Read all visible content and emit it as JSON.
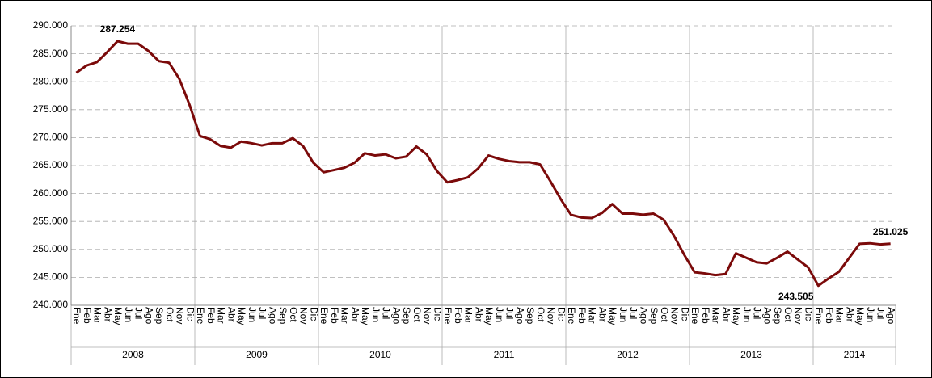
{
  "chart_data": {
    "type": "line",
    "categories": [
      "Ene",
      "Feb",
      "Mar",
      "Abr",
      "May",
      "Jun",
      "Jul",
      "Ago",
      "Sep",
      "Oct",
      "Nov",
      "Dic",
      "Ene",
      "Feb",
      "Mar",
      "Abr",
      "May",
      "Jun",
      "Jul",
      "Ago",
      "Sep",
      "Oct",
      "Nov",
      "Dic",
      "Ene",
      "Feb",
      "Mar",
      "Abr",
      "May",
      "Jun",
      "Jul",
      "Ago",
      "Sep",
      "Oct",
      "Nov",
      "Dic",
      "Ene",
      "Feb",
      "Mar",
      "Abr",
      "May",
      "Jun",
      "Jul",
      "Ago",
      "Sep",
      "Oct",
      "Nov",
      "Dic",
      "Ene",
      "Feb",
      "Mar",
      "Abr",
      "May",
      "Jun",
      "Jul",
      "Ago",
      "Sep",
      "Oct",
      "Nov",
      "Dic",
      "Ene",
      "Feb",
      "Mar",
      "Abr",
      "May",
      "Jun",
      "Jul",
      "Ago",
      "Sep",
      "Oct",
      "Nov",
      "Dic",
      "Ene",
      "Feb",
      "Mar",
      "Abr",
      "May",
      "Jun",
      "Jul",
      "Ago"
    ],
    "category_groups": [
      "2008",
      "2009",
      "2010",
      "2011",
      "2012",
      "2013",
      "2014"
    ],
    "color": "#7b0a0a",
    "values": [
      281600,
      282900,
      283500,
      285300,
      287254,
      286800,
      286800,
      285500,
      283700,
      283400,
      280500,
      275800,
      270300,
      269700,
      268500,
      268200,
      269300,
      269000,
      268600,
      269000,
      269000,
      269900,
      268500,
      265500,
      263800,
      264200,
      264600,
      265500,
      267200,
      266800,
      267000,
      266300,
      266600,
      268400,
      267000,
      264000,
      262000,
      262400,
      262900,
      264500,
      266800,
      266200,
      265800,
      265600,
      265600,
      265200,
      262200,
      259000,
      256200,
      255700,
      255600,
      256500,
      258100,
      256400,
      256400,
      256200,
      256400,
      255300,
      252400,
      249000,
      245900,
      245700,
      245400,
      245600,
      249300,
      248500,
      247700,
      247500,
      248500,
      249600,
      248200,
      246800,
      243505,
      244800,
      246000,
      248500,
      251000,
      251100,
      250900,
      251025
    ],
    "value_labels": [
      null,
      null,
      null,
      null,
      "287.254",
      null,
      null,
      null,
      null,
      null,
      null,
      null,
      null,
      null,
      null,
      null,
      null,
      null,
      null,
      null,
      null,
      null,
      null,
      null,
      null,
      null,
      null,
      null,
      null,
      null,
      null,
      null,
      null,
      null,
      null,
      null,
      null,
      null,
      null,
      null,
      null,
      null,
      null,
      null,
      null,
      null,
      null,
      null,
      null,
      null,
      null,
      null,
      null,
      null,
      null,
      null,
      null,
      null,
      null,
      null,
      null,
      null,
      null,
      null,
      null,
      null,
      null,
      null,
      null,
      null,
      null,
      null,
      "243.505",
      null,
      null,
      null,
      null,
      null,
      null,
      "251.025"
    ],
    "ylim": [
      240000,
      290000
    ],
    "yticks": [
      {
        "value": 240000,
        "label": "240.000"
      },
      {
        "value": 245000,
        "label": "245.000"
      },
      {
        "value": 250000,
        "label": "250.000"
      },
      {
        "value": 255000,
        "label": "255.000"
      },
      {
        "value": 260000,
        "label": "260.000"
      },
      {
        "value": 265000,
        "label": "265.000"
      },
      {
        "value": 270000,
        "label": "270.000"
      },
      {
        "value": 275000,
        "label": "275.000"
      },
      {
        "value": 280000,
        "label": "280.000"
      },
      {
        "value": 285000,
        "label": "285.000"
      },
      {
        "value": 290000,
        "label": "290.000"
      }
    ],
    "grid": true
  }
}
